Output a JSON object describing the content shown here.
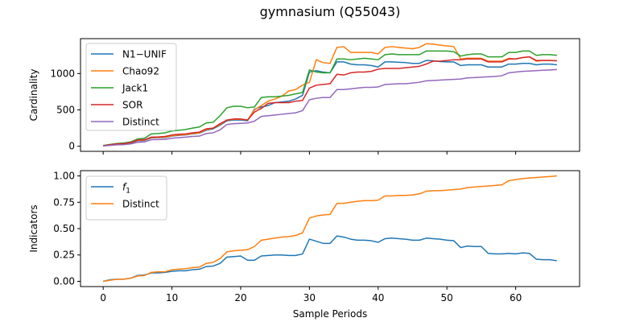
{
  "figure": {
    "title": "gymnasium (Q55043)"
  },
  "chart_data": [
    {
      "type": "line",
      "ylabel": "Cardinality",
      "xlabel": "",
      "xlim": [
        -3.3,
        69.3
      ],
      "ylim": [
        -70,
        1480
      ],
      "xticks": [
        0,
        10,
        20,
        30,
        40,
        50,
        60
      ],
      "yticks": [
        0,
        500,
        1000
      ],
      "show_xtick_labels": false,
      "legend": "upper left",
      "x": [
        0,
        1,
        2,
        3,
        4,
        5,
        6,
        7,
        8,
        9,
        10,
        11,
        12,
        13,
        14,
        15,
        16,
        17,
        18,
        19,
        20,
        21,
        22,
        23,
        24,
        25,
        26,
        27,
        28,
        29,
        30,
        31,
        32,
        33,
        34,
        35,
        36,
        37,
        38,
        39,
        40,
        41,
        42,
        43,
        44,
        45,
        46,
        47,
        48,
        49,
        50,
        51,
        52,
        53,
        54,
        55,
        56,
        57,
        58,
        59,
        60,
        61,
        62,
        63,
        64,
        65,
        66
      ],
      "series": [
        {
          "name": "N1−UNIF",
          "color": "#1f77b4",
          "values": [
            5,
            18,
            30,
            33,
            45,
            75,
            80,
            115,
            118,
            120,
            140,
            150,
            155,
            170,
            180,
            220,
            240,
            290,
            350,
            360,
            360,
            350,
            510,
            540,
            560,
            600,
            610,
            620,
            650,
            700,
            1020,
            1040,
            1020,
            1010,
            1160,
            1160,
            1130,
            1120,
            1120,
            1110,
            1090,
            1160,
            1160,
            1155,
            1150,
            1140,
            1140,
            1180,
            1175,
            1165,
            1160,
            1160,
            1110,
            1120,
            1120,
            1120,
            1090,
            1090,
            1090,
            1130,
            1130,
            1140,
            1140,
            1120,
            1130,
            1130,
            1120
          ]
        },
        {
          "name": "Chao92",
          "color": "#ff7f0e",
          "values": [
            5,
            20,
            32,
            35,
            48,
            80,
            85,
            120,
            122,
            125,
            145,
            155,
            160,
            175,
            185,
            230,
            250,
            300,
            360,
            370,
            370,
            360,
            500,
            560,
            620,
            650,
            690,
            760,
            780,
            840,
            880,
            1190,
            1150,
            1140,
            1360,
            1370,
            1290,
            1290,
            1290,
            1290,
            1270,
            1360,
            1370,
            1360,
            1350,
            1340,
            1360,
            1410,
            1405,
            1390,
            1380,
            1370,
            1200,
            1210,
            1210,
            1210,
            1170,
            1170,
            1170,
            1210,
            1200,
            1220,
            1230,
            1170,
            1180,
            1180,
            1175
          ]
        },
        {
          "name": "Jack1",
          "color": "#2ca02c",
          "values": [
            10,
            25,
            38,
            45,
            60,
            100,
            110,
            170,
            175,
            185,
            210,
            220,
            230,
            250,
            265,
            320,
            330,
            420,
            530,
            550,
            550,
            530,
            540,
            670,
            680,
            680,
            690,
            700,
            720,
            740,
            1050,
            1020,
            1010,
            1010,
            1200,
            1200,
            1190,
            1200,
            1210,
            1200,
            1190,
            1260,
            1270,
            1260,
            1260,
            1260,
            1260,
            1310,
            1310,
            1310,
            1310,
            1300,
            1240,
            1260,
            1270,
            1270,
            1230,
            1230,
            1230,
            1290,
            1290,
            1310,
            1310,
            1250,
            1260,
            1260,
            1250
          ]
        },
        {
          "name": "SOR",
          "color": "#d62728",
          "values": [
            8,
            20,
            33,
            35,
            50,
            85,
            90,
            125,
            128,
            135,
            155,
            165,
            170,
            185,
            195,
            240,
            250,
            310,
            360,
            375,
            375,
            360,
            470,
            520,
            590,
            600,
            600,
            600,
            620,
            630,
            800,
            840,
            850,
            860,
            990,
            980,
            1010,
            1020,
            1020,
            1030,
            1060,
            1070,
            1070,
            1070,
            1080,
            1090,
            1100,
            1130,
            1170,
            1170,
            1180,
            1190,
            1190,
            1200,
            1200,
            1200,
            1160,
            1160,
            1160,
            1200,
            1200,
            1220,
            1230,
            1180,
            1180,
            1180,
            1175
          ]
        },
        {
          "name": "Distinct",
          "color": "#9467bd",
          "values": [
            3,
            12,
            20,
            22,
            32,
            55,
            60,
            90,
            92,
            95,
            110,
            118,
            125,
            135,
            140,
            175,
            185,
            225,
            300,
            310,
            315,
            320,
            345,
            410,
            420,
            430,
            440,
            450,
            460,
            490,
            640,
            660,
            670,
            670,
            780,
            780,
            790,
            800,
            810,
            810,
            815,
            850,
            855,
            860,
            860,
            870,
            880,
            900,
            905,
            910,
            915,
            920,
            925,
            940,
            945,
            950,
            955,
            960,
            970,
            1010,
            1020,
            1030,
            1035,
            1040,
            1045,
            1050,
            1055
          ]
        }
      ]
    },
    {
      "type": "line",
      "ylabel": "Indicators",
      "xlabel": "Sample Periods",
      "xlim": [
        -3.3,
        69.3
      ],
      "ylim": [
        -0.05,
        1.05
      ],
      "xticks": [
        0,
        10,
        20,
        30,
        40,
        50,
        60
      ],
      "yticks": [
        0.0,
        0.25,
        0.5,
        0.75,
        1.0
      ],
      "show_xtick_labels": true,
      "legend": "upper left",
      "x": [
        0,
        1,
        2,
        3,
        4,
        5,
        6,
        7,
        8,
        9,
        10,
        11,
        12,
        13,
        14,
        15,
        16,
        17,
        18,
        19,
        20,
        21,
        22,
        23,
        24,
        25,
        26,
        27,
        28,
        29,
        30,
        31,
        32,
        33,
        34,
        35,
        36,
        37,
        38,
        39,
        40,
        41,
        42,
        43,
        44,
        45,
        46,
        47,
        48,
        49,
        50,
        51,
        52,
        53,
        54,
        55,
        56,
        57,
        58,
        59,
        60,
        61,
        62,
        63,
        64,
        65,
        66
      ],
      "series": [
        {
          "name": "f_1",
          "label_main": "f",
          "label_sub": "1",
          "color": "#1f77b4",
          "values": [
            0.0,
            0.015,
            0.02,
            0.02,
            0.03,
            0.055,
            0.06,
            0.08,
            0.08,
            0.085,
            0.095,
            0.1,
            0.1,
            0.11,
            0.115,
            0.14,
            0.145,
            0.17,
            0.23,
            0.235,
            0.24,
            0.2,
            0.2,
            0.24,
            0.245,
            0.25,
            0.25,
            0.245,
            0.245,
            0.26,
            0.4,
            0.38,
            0.36,
            0.36,
            0.43,
            0.42,
            0.4,
            0.39,
            0.39,
            0.385,
            0.37,
            0.405,
            0.41,
            0.405,
            0.4,
            0.39,
            0.39,
            0.41,
            0.405,
            0.4,
            0.39,
            0.385,
            0.32,
            0.335,
            0.33,
            0.33,
            0.265,
            0.26,
            0.26,
            0.265,
            0.26,
            0.27,
            0.265,
            0.21,
            0.205,
            0.205,
            0.195
          ]
        },
        {
          "name": "Distinct",
          "color": "#ff7f0e",
          "values": [
            0.0,
            0.01,
            0.02,
            0.02,
            0.03,
            0.05,
            0.055,
            0.085,
            0.09,
            0.09,
            0.11,
            0.115,
            0.12,
            0.13,
            0.135,
            0.17,
            0.18,
            0.215,
            0.28,
            0.29,
            0.295,
            0.3,
            0.33,
            0.39,
            0.4,
            0.41,
            0.42,
            0.425,
            0.435,
            0.46,
            0.6,
            0.62,
            0.63,
            0.635,
            0.74,
            0.74,
            0.75,
            0.76,
            0.765,
            0.765,
            0.77,
            0.81,
            0.81,
            0.815,
            0.815,
            0.82,
            0.83,
            0.855,
            0.86,
            0.86,
            0.865,
            0.87,
            0.875,
            0.89,
            0.895,
            0.9,
            0.905,
            0.91,
            0.915,
            0.955,
            0.965,
            0.975,
            0.98,
            0.985,
            0.99,
            0.995,
            1.0
          ]
        }
      ]
    }
  ]
}
